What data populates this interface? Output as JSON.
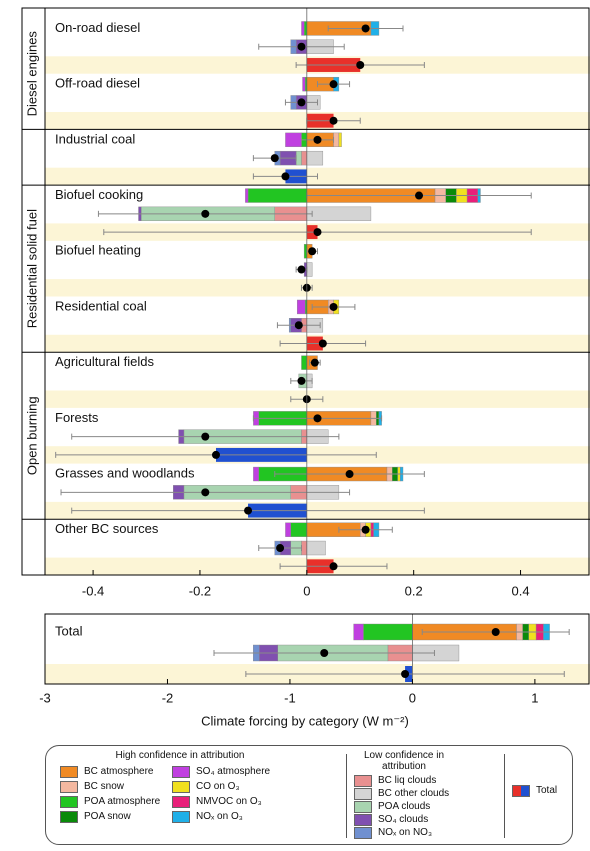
{
  "chart_data": [
    {
      "type": "bar",
      "sectors": [
        {
          "name": "Diesel engines",
          "categories": [
            "On-road diesel",
            "Off-road diesel"
          ]
        },
        {
          "name": null,
          "categories": [
            "Industrial coal"
          ]
        },
        {
          "name": "Residential solid fuel",
          "categories": [
            "Biofuel cooking",
            "Biofuel heating",
            "Residential coal"
          ]
        },
        {
          "name": "Open burning",
          "categories": [
            "Agricultural fields",
            "Forests",
            "Grasses and woodlands"
          ]
        },
        {
          "name": null,
          "categories": [
            "Other BC sources"
          ]
        }
      ],
      "groups": [
        {
          "name": "High confidence in attribution",
          "series": [
            {
              "name": "BC atmosphere",
              "color": "#f08a24",
              "values": [
                0.12,
                0.05,
                0.05,
                0.24,
                0.01,
                0.04,
                0.02,
                0.12,
                0.15,
                0.1
              ]
            },
            {
              "name": "BC snow",
              "color": "#f4b8a0",
              "values": [
                null,
                null,
                0.01,
                0.02,
                null,
                0.01,
                null,
                0.01,
                0.01,
                0.01
              ]
            },
            {
              "name": "POA atmosphere",
              "color": "#22c522",
              "values": [
                -0.005,
                -0.003,
                -0.01,
                -0.11,
                -0.005,
                -0.003,
                -0.01,
                -0.09,
                -0.09,
                -0.03
              ]
            },
            {
              "name": "POA snow",
              "color": "#0a8a0a",
              "values": [
                null,
                null,
                null,
                0.02,
                null,
                null,
                null,
                0.005,
                0.01,
                null
              ]
            },
            {
              "name": "SO₄ atmosphere",
              "color": "#c040e0",
              "values": [
                -0.005,
                -0.005,
                -0.03,
                -0.005,
                null,
                -0.015,
                null,
                -0.01,
                -0.01,
                -0.01
              ]
            },
            {
              "name": "CO on O₃",
              "color": "#f0e020",
              "values": [
                null,
                null,
                0.005,
                0.02,
                null,
                0.01,
                null,
                null,
                0.005,
                0.01
              ]
            },
            {
              "name": "NMVOC on O₃",
              "color": "#e8207a",
              "values": [
                null,
                null,
                null,
                0.02,
                null,
                null,
                null,
                null,
                null,
                0.005
              ]
            },
            {
              "name": "NOₓ on O₃",
              "color": "#20b0e8",
              "values": [
                0.015,
                0.01,
                null,
                0.005,
                null,
                null,
                null,
                0.005,
                0.005,
                0.01
              ]
            }
          ],
          "net": [
            0.11,
            0.05,
            0.02,
            0.21,
            0.01,
            0.05,
            0.015,
            0.02,
            0.08,
            0.11
          ],
          "errors": [
            0.07,
            0.03,
            0.03,
            0.21,
            0.01,
            0.04,
            0.01,
            0.12,
            0.14,
            0.05
          ]
        },
        {
          "name": "Low confidence in attribution",
          "series": [
            {
              "name": "BC liq clouds",
              "color": "#e89090",
              "values": [
                null,
                null,
                -0.01,
                -0.06,
                null,
                -0.01,
                null,
                -0.01,
                -0.03,
                -0.01
              ]
            },
            {
              "name": "BC other clouds",
              "color": "#d4d4d4",
              "values": [
                0.05,
                0.025,
                0.03,
                0.12,
                0.01,
                0.03,
                0.01,
                0.04,
                0.06,
                0.035
              ]
            },
            {
              "name": "POA clouds",
              "color": "#a8d4b0",
              "values": [
                null,
                null,
                -0.01,
                -0.25,
                null,
                null,
                -0.015,
                -0.22,
                -0.2,
                -0.02
              ]
            },
            {
              "name": "SO₄ clouds",
              "color": "#8050b0",
              "values": [
                -0.02,
                -0.02,
                -0.03,
                -0.005,
                -0.005,
                -0.02,
                null,
                -0.01,
                -0.02,
                -0.02
              ]
            },
            {
              "name": "NOₓ on NO₃",
              "color": "#7090d0",
              "values": [
                -0.01,
                -0.01,
                -0.01,
                null,
                null,
                -0.003,
                null,
                null,
                null,
                -0.01
              ]
            }
          ],
          "net": [
            -0.01,
            -0.01,
            -0.06,
            -0.19,
            -0.01,
            -0.015,
            -0.01,
            -0.19,
            -0.19,
            -0.05
          ],
          "errors": [
            0.08,
            0.03,
            0.04,
            0.2,
            0.01,
            0.04,
            0.02,
            0.25,
            0.27,
            0.04
          ]
        }
      ],
      "total": {
        "name": "Total",
        "color": "#e8302a",
        "negative_color": "#2050d0",
        "values": [
          0.1,
          0.05,
          -0.04,
          0.02,
          0,
          0.03,
          0,
          -0.17,
          -0.11,
          0.05
        ],
        "errors": [
          0.12,
          0.05,
          0.06,
          0.4,
          0.01,
          0.08,
          0.03,
          0.3,
          0.33,
          0.1
        ]
      },
      "xlim": [
        -0.49,
        0.53
      ],
      "xticks": [
        -0.4,
        -0.2,
        0,
        0.2,
        0.4
      ]
    },
    {
      "type": "bar",
      "categories": [
        "Total"
      ],
      "groups": [
        {
          "series": [
            {
              "values": [
                0.85
              ]
            },
            {
              "values": [
                0.05
              ]
            },
            {
              "values": [
                -0.4
              ]
            },
            {
              "values": [
                0.05
              ]
            },
            {
              "values": [
                -0.08
              ]
            },
            {
              "values": [
                0.06
              ]
            },
            {
              "values": [
                0.06
              ]
            },
            {
              "values": [
                0.05
              ]
            }
          ],
          "net": [
            0.68
          ],
          "errors": [
            0.6
          ]
        },
        {
          "series": [
            {
              "values": [
                -0.2
              ]
            },
            {
              "values": [
                0.38
              ]
            },
            {
              "values": [
                -0.9
              ]
            },
            {
              "values": [
                -0.15
              ]
            },
            {
              "values": [
                -0.05
              ]
            }
          ],
          "net": [
            -0.72
          ],
          "errors": [
            0.9
          ]
        }
      ],
      "total": {
        "values": [
          -0.06
        ],
        "errors": [
          1.3
        ]
      },
      "xlim": [
        -3,
        1.45
      ],
      "xticks": [
        -3,
        -2,
        -1,
        0,
        1
      ],
      "xlabel": "Climate forcing by category (W m⁻²)"
    }
  ]
}
